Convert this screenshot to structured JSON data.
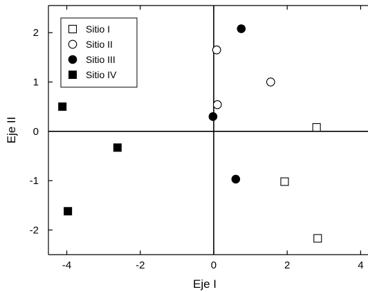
{
  "chart_data": {
    "type": "scatter",
    "title": "",
    "xlabel": "Eje I",
    "ylabel": "Eje II",
    "xlim": [
      -4.5,
      4.2
    ],
    "ylim": [
      -2.5,
      2.55
    ],
    "xticks": [
      -4,
      -2,
      0,
      2,
      4
    ],
    "yticks": [
      2,
      1,
      0,
      -1,
      -2
    ],
    "grid": false,
    "reference_lines": {
      "x": 0,
      "y": 0
    },
    "legend_position": "top-left",
    "series": [
      {
        "name": "Sitio I",
        "marker": "open-square",
        "points": [
          [
            2.8,
            0.08
          ],
          [
            1.93,
            -1.02
          ],
          [
            2.83,
            -2.17
          ]
        ]
      },
      {
        "name": "Sitio II",
        "marker": "open-circle",
        "points": [
          [
            0.08,
            1.65
          ],
          [
            1.55,
            1.0
          ],
          [
            0.1,
            0.54
          ]
        ]
      },
      {
        "name": "Sitio III",
        "marker": "filled-circle",
        "points": [
          [
            0.75,
            2.08
          ],
          [
            -0.02,
            0.3
          ],
          [
            0.6,
            -0.97
          ]
        ]
      },
      {
        "name": "Sitio IV",
        "marker": "filled-square",
        "points": [
          [
            -4.12,
            0.5
          ],
          [
            -2.62,
            -0.33
          ],
          [
            -3.97,
            -1.62
          ]
        ]
      }
    ]
  }
}
